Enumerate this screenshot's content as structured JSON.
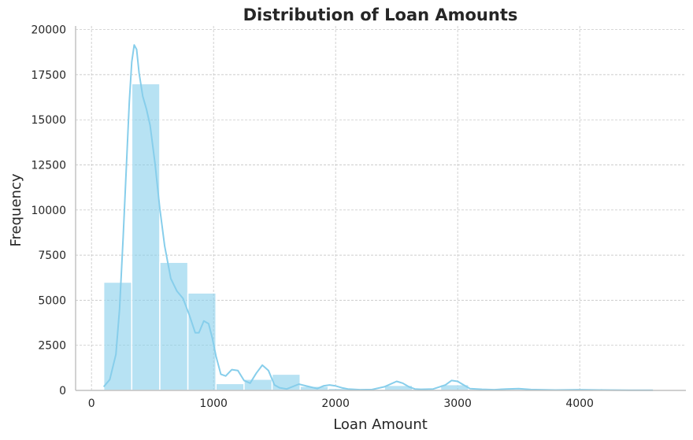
{
  "chart_data": {
    "type": "bar",
    "title": "Distribution of Loan Amounts",
    "xlabel": "Loan Amount",
    "ylabel": "Frequency",
    "xlim": [
      -130,
      4870
    ],
    "ylim": [
      0,
      20200
    ],
    "xticks": [
      0,
      1000,
      2000,
      3000,
      4000
    ],
    "yticks": [
      0,
      2500,
      5000,
      7500,
      10000,
      12500,
      15000,
      17500,
      20000
    ],
    "bar_color": "#87ceeb",
    "kde_color": "#87ceeb",
    "grid": true,
    "bins": [
      {
        "x0": 100,
        "x1": 330,
        "count": 6000
      },
      {
        "x0": 330,
        "x1": 560,
        "count": 17000
      },
      {
        "x0": 560,
        "x1": 790,
        "count": 7100
      },
      {
        "x0": 790,
        "x1": 1020,
        "count": 5400
      },
      {
        "x0": 1020,
        "x1": 1250,
        "count": 380
      },
      {
        "x0": 1250,
        "x1": 1480,
        "count": 620
      },
      {
        "x0": 1480,
        "x1": 1710,
        "count": 900
      },
      {
        "x0": 1710,
        "x1": 1940,
        "count": 230
      },
      {
        "x0": 1940,
        "x1": 2170,
        "count": 120
      },
      {
        "x0": 2170,
        "x1": 2400,
        "count": 20
      },
      {
        "x0": 2400,
        "x1": 2630,
        "count": 280
      },
      {
        "x0": 2630,
        "x1": 2860,
        "count": 15
      },
      {
        "x0": 2860,
        "x1": 3090,
        "count": 320
      },
      {
        "x0": 3090,
        "x1": 3320,
        "count": 60
      },
      {
        "x0": 3320,
        "x1": 3550,
        "count": 40
      },
      {
        "x0": 3550,
        "x1": 3780,
        "count": 10
      },
      {
        "x0": 3780,
        "x1": 4010,
        "count": 10
      },
      {
        "x0": 4010,
        "x1": 4240,
        "count": 10
      },
      {
        "x0": 4240,
        "x1": 4470,
        "count": 5
      },
      {
        "x0": 4470,
        "x1": 4700,
        "count": 5
      }
    ],
    "kde": {
      "x": [
        100,
        150,
        200,
        230,
        260,
        290,
        310,
        330,
        350,
        370,
        390,
        420,
        450,
        480,
        520,
        560,
        600,
        650,
        700,
        750,
        800,
        850,
        880,
        920,
        960,
        990,
        1020,
        1060,
        1100,
        1150,
        1200,
        1250,
        1300,
        1350,
        1400,
        1450,
        1500,
        1540,
        1600,
        1700,
        1800,
        1850,
        1900,
        1950,
        2000,
        2050,
        2100,
        2200,
        2300,
        2400,
        2500,
        2550,
        2600,
        2650,
        2700,
        2800,
        2900,
        2950,
        3000,
        3050,
        3100,
        3200,
        3300,
        3400,
        3500,
        3600,
        3800,
        4000,
        4200,
        4400,
        4600
      ],
      "y": [
        200,
        600,
        2000,
        4500,
        8500,
        13000,
        16000,
        18200,
        19150,
        18900,
        17600,
        16300,
        15600,
        14700,
        12600,
        10100,
        8000,
        6200,
        5500,
        5100,
        4200,
        3200,
        3200,
        3850,
        3700,
        2900,
        1900,
        900,
        800,
        1150,
        1100,
        550,
        400,
        950,
        1400,
        1100,
        300,
        150,
        80,
        350,
        180,
        100,
        250,
        300,
        250,
        150,
        80,
        40,
        50,
        200,
        500,
        400,
        200,
        80,
        60,
        80,
        300,
        550,
        500,
        300,
        100,
        60,
        40,
        80,
        100,
        50,
        20,
        40,
        20,
        10,
        10
      ]
    }
  }
}
